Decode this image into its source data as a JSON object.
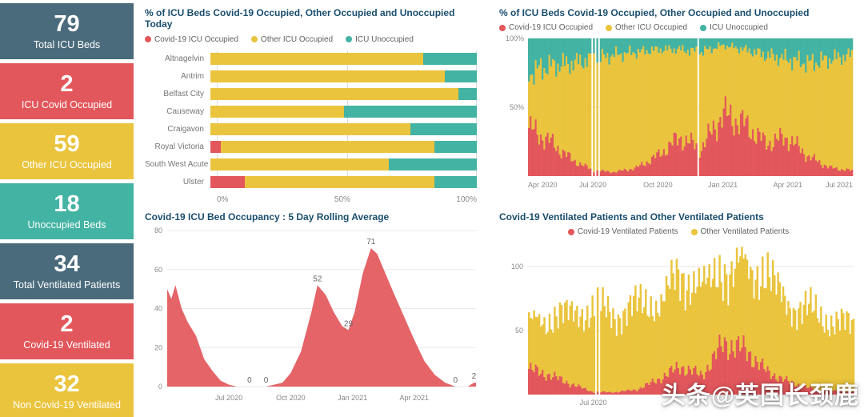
{
  "colors": {
    "covid": "#e2575b",
    "other": "#eac43d",
    "unoccupied": "#43b3a3",
    "slate": "#4a6b7c",
    "title": "#1a4e6e"
  },
  "kpis": [
    {
      "value": "79",
      "label": "Total ICU Beds",
      "bg": "#4a6b7c"
    },
    {
      "value": "2",
      "label": "ICU Covid Occupied",
      "bg": "#e2575b"
    },
    {
      "value": "59",
      "label": "Other ICU Occupied",
      "bg": "#eac43d"
    },
    {
      "value": "18",
      "label": "Unoccupied Beds",
      "bg": "#43b3a3"
    },
    {
      "value": "34",
      "label": "Total Ventilated Patients",
      "bg": "#4a6b7c"
    },
    {
      "value": "2",
      "label": "Covid-19 Ventilated",
      "bg": "#e2575b"
    },
    {
      "value": "32",
      "label": "Non Covid-19 Ventilated",
      "bg": "#eac43d"
    }
  ],
  "watermark": {
    "text": "头条@英国长颈鹿"
  },
  "chart_data": [
    {
      "id": "hospital_bars",
      "type": "bar",
      "orientation": "horizontal",
      "stacked": "percent",
      "title": "% of ICU Beds Covid-19 Occupied, Other Occupied and Unoccupied Today",
      "categories": [
        "Altnagelvin",
        "Antrim",
        "Belfast City",
        "Causeway",
        "Craigavon",
        "Royal Victoria",
        "South West Acute",
        "Ulster"
      ],
      "series": [
        {
          "name": "Covid-19 ICU Occupied",
          "color": "#e2575b",
          "values": [
            0,
            0,
            0,
            0,
            0,
            4,
            0,
            13
          ]
        },
        {
          "name": "Other ICU Occupied",
          "color": "#eac43d",
          "values": [
            80,
            88,
            93,
            50,
            75,
            80,
            67,
            71
          ]
        },
        {
          "name": "ICU Unoccupied",
          "color": "#43b3a3",
          "values": [
            20,
            12,
            7,
            50,
            25,
            16,
            33,
            16
          ]
        }
      ],
      "x_ticks": [
        "0%",
        "50%",
        "100%"
      ]
    },
    {
      "id": "pct_over_time",
      "type": "area",
      "stacked": "percent",
      "title": "% of ICU Beds Covid-19 Occupied, Other Occupied and Unoccupied",
      "x_range": [
        "Apr 2020",
        "Jul 2021"
      ],
      "x_ticks": [
        "Apr 2020",
        "Jul 2020",
        "Oct 2020",
        "Jan 2021",
        "Apr 2021",
        "Jul 2021"
      ],
      "y_ticks": [
        "50%",
        "100%"
      ],
      "series": [
        {
          "name": "Covid-19 ICU Occupied",
          "color": "#e2575b",
          "values_pct": [
            35,
            25,
            12,
            4,
            3,
            6,
            15,
            28,
            20,
            45,
            38,
            24,
            28,
            14,
            6,
            4
          ]
        },
        {
          "name": "Other ICU Occupied",
          "color": "#eac43d",
          "values_pct": [
            40,
            55,
            70,
            81,
            85,
            84,
            77,
            64,
            70,
            50,
            54,
            64,
            57,
            68,
            79,
            84
          ]
        },
        {
          "name": "ICU Unoccupied",
          "color": "#43b3a3",
          "values_pct": [
            25,
            20,
            18,
            15,
            12,
            10,
            8,
            8,
            10,
            5,
            8,
            12,
            15,
            18,
            15,
            12
          ]
        }
      ]
    },
    {
      "id": "icu_rolling_average",
      "type": "area",
      "title": "Covid-19 ICU Bed Occupancy : 5 Day Rolling Average",
      "color": "#e2575b",
      "ylim": [
        0,
        80
      ],
      "y_ticks": [
        0,
        20,
        40,
        60,
        80
      ],
      "x_range": [
        "Apr 2020",
        "Jul 2021"
      ],
      "x_ticks": [
        "Jul 2020",
        "Oct 2020",
        "Jan 2021",
        "Apr 2021"
      ],
      "points": [
        {
          "m": 0,
          "v": 50
        },
        {
          "m": 0.2,
          "v": 45
        },
        {
          "m": 0.4,
          "v": 52
        },
        {
          "m": 0.7,
          "v": 40
        },
        {
          "m": 1.0,
          "v": 33
        },
        {
          "m": 1.4,
          "v": 26
        },
        {
          "m": 1.8,
          "v": 14
        },
        {
          "m": 2.2,
          "v": 8
        },
        {
          "m": 2.6,
          "v": 3
        },
        {
          "m": 3.0,
          "v": 1
        },
        {
          "m": 3.4,
          "v": 0
        },
        {
          "m": 4.0,
          "v": 0,
          "label": "0"
        },
        {
          "m": 4.8,
          "v": 0,
          "label": "0"
        },
        {
          "m": 5.6,
          "v": 2
        },
        {
          "m": 6.0,
          "v": 7
        },
        {
          "m": 6.5,
          "v": 18
        },
        {
          "m": 7.0,
          "v": 38
        },
        {
          "m": 7.3,
          "v": 52,
          "label": "52"
        },
        {
          "m": 7.7,
          "v": 47
        },
        {
          "m": 8.1,
          "v": 38
        },
        {
          "m": 8.5,
          "v": 31
        },
        {
          "m": 8.8,
          "v": 29,
          "label": "29"
        },
        {
          "m": 9.1,
          "v": 38
        },
        {
          "m": 9.5,
          "v": 58
        },
        {
          "m": 9.9,
          "v": 71,
          "label": "71"
        },
        {
          "m": 10.2,
          "v": 68
        },
        {
          "m": 10.6,
          "v": 58
        },
        {
          "m": 11.0,
          "v": 48
        },
        {
          "m": 11.5,
          "v": 36
        },
        {
          "m": 12.0,
          "v": 24
        },
        {
          "m": 12.5,
          "v": 13
        },
        {
          "m": 13.0,
          "v": 6
        },
        {
          "m": 13.5,
          "v": 2
        },
        {
          "m": 14.0,
          "v": 0,
          "label": "0"
        },
        {
          "m": 14.6,
          "v": 0
        },
        {
          "m": 14.9,
          "v": 2,
          "label": "2"
        },
        {
          "m": 15,
          "v": 2
        }
      ]
    },
    {
      "id": "ventilated_patients",
      "type": "area",
      "stacked": true,
      "title": "Covid-19 Ventilated Patients and Other Ventilated Patients",
      "ylim": [
        0,
        120
      ],
      "y_ticks": [
        50,
        100
      ],
      "x_range": [
        "Apr 2020",
        "Jul 2021"
      ],
      "x_ticks": [
        "Jul 2020"
      ],
      "series": [
        {
          "name": "Covid-19 Ventilated Patients",
          "color": "#e2575b",
          "values": [
            20,
            15,
            8,
            2,
            2,
            4,
            12,
            22,
            15,
            40,
            35,
            18,
            10,
            5,
            3,
            2
          ]
        },
        {
          "name": "Other Ventilated Patients",
          "color": "#eac43d",
          "values": [
            35,
            45,
            55,
            65,
            60,
            65,
            60,
            70,
            70,
            55,
            65,
            75,
            60,
            60,
            55,
            50
          ]
        }
      ]
    }
  ]
}
